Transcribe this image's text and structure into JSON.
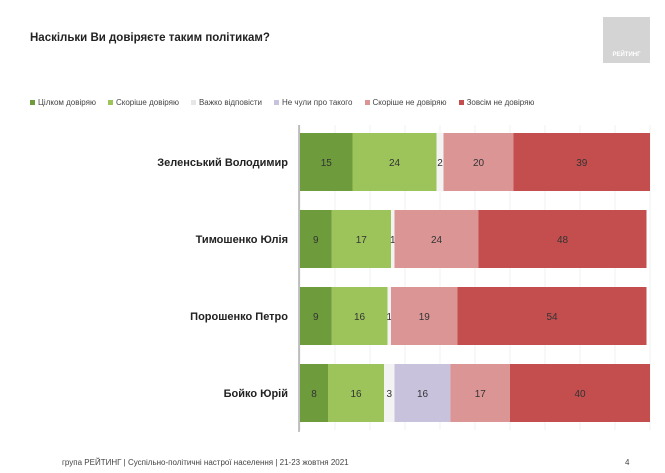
{
  "title": "Наскільки Ви довіряєте таким політикам?",
  "logo_text": "РЕЙТИНГ",
  "footer": "група РЕЙТИНГ | Суспільно-політичні настрої населення  | 21-23 жовтня 2021",
  "page_number": "4",
  "chart_data": {
    "type": "bar",
    "orientation": "horizontal",
    "stacked": true,
    "title": "Наскільки Ви довіряєте таким політикам?",
    "legend_position": "top",
    "xlim": [
      0,
      100
    ],
    "categories": [
      "Зеленський Володимир",
      "Тимошенко Юлія",
      "Порошенко Петро",
      "Бойко Юрій"
    ],
    "series": [
      {
        "name": "Цілком довіряю",
        "color": "#6e9c3c",
        "values": [
          15,
          9,
          9,
          8
        ]
      },
      {
        "name": "Скоріше довіряю",
        "color": "#9cc45a",
        "values": [
          24,
          17,
          16,
          16
        ]
      },
      {
        "name": "Важко відповісти",
        "color": "#f3f3f3",
        "values": [
          2,
          1,
          1,
          3
        ]
      },
      {
        "name": "Не чули про такого",
        "color": "#c8c2dd",
        "values": [
          0,
          0,
          0,
          16
        ]
      },
      {
        "name": "Скоріше не довіряю",
        "color": "#db9595",
        "values": [
          20,
          24,
          19,
          17
        ]
      },
      {
        "name": "Зовсім не довіряю",
        "color": "#c44e4e",
        "values": [
          39,
          48,
          54,
          40
        ]
      }
    ]
  }
}
